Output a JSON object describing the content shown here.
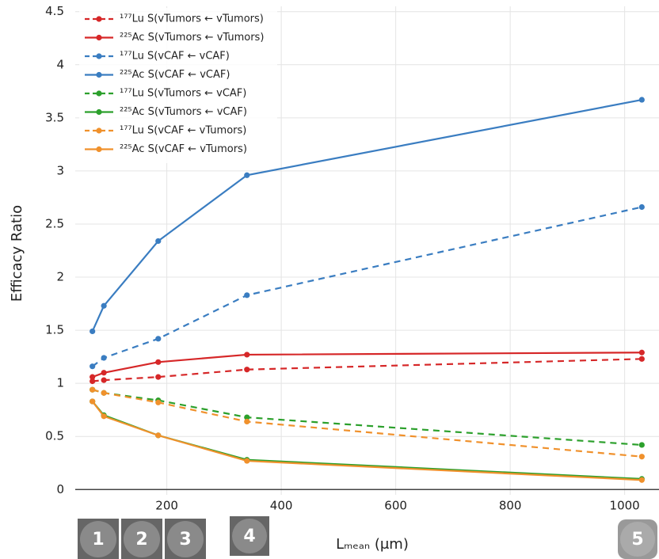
{
  "chart_data": {
    "type": "line",
    "y_label": "Efficacy Ratio",
    "x_label": "Lₘₑₐₙ (μm)",
    "x": [
      70,
      90,
      185,
      340,
      1030
    ],
    "xlim": [
      40,
      1060
    ],
    "xticks": [
      200,
      400,
      600,
      800,
      1000
    ],
    "ylim": [
      -0.05,
      4.55
    ],
    "yticks": [
      0,
      0.5,
      1,
      1.5,
      2,
      2.5,
      3,
      3.5,
      4,
      4.5
    ],
    "grid": true,
    "legend": "upper-left",
    "series": [
      {
        "name": "¹⁷⁷Lu S(vTumors ← vTumors)",
        "color": "#d62728",
        "dash": true,
        "values": [
          1.02,
          1.03,
          1.06,
          1.13,
          1.23
        ]
      },
      {
        "name": "²²⁵Ac S(vTumors ← vTumors)",
        "color": "#d62728",
        "dash": false,
        "values": [
          1.06,
          1.1,
          1.2,
          1.27,
          1.29
        ]
      },
      {
        "name": "¹⁷⁷Lu S(vCAF ← vCAF)",
        "color": "#3a7dc1",
        "dash": true,
        "values": [
          1.16,
          1.24,
          1.42,
          1.83,
          2.66
        ]
      },
      {
        "name": "²²⁵Ac S(vCAF ← vCAF)",
        "color": "#3a7dc1",
        "dash": false,
        "values": [
          1.49,
          1.73,
          2.34,
          2.96,
          3.67
        ]
      },
      {
        "name": "¹⁷⁷Lu S(vTumors ← vCAF)",
        "color": "#2ca02c",
        "dash": true,
        "values": [
          0.94,
          0.91,
          0.84,
          0.68,
          0.42
        ]
      },
      {
        "name": "²²⁵Ac S(vTumors ← vCAF)",
        "color": "#2ca02c",
        "dash": false,
        "values": [
          0.83,
          0.7,
          0.51,
          0.28,
          0.1
        ]
      },
      {
        "name": "¹⁷⁷Lu S(vCAF ← vTumors)",
        "color": "#f0912c",
        "dash": true,
        "values": [
          0.94,
          0.91,
          0.82,
          0.64,
          0.31
        ]
      },
      {
        "name": "²²⁵Ac S(vCAF ← vTumors)",
        "color": "#f0912c",
        "dash": false,
        "values": [
          0.83,
          0.69,
          0.51,
          0.27,
          0.09
        ]
      }
    ],
    "thumbnails": [
      "1",
      "2",
      "3",
      "4",
      "5"
    ]
  }
}
